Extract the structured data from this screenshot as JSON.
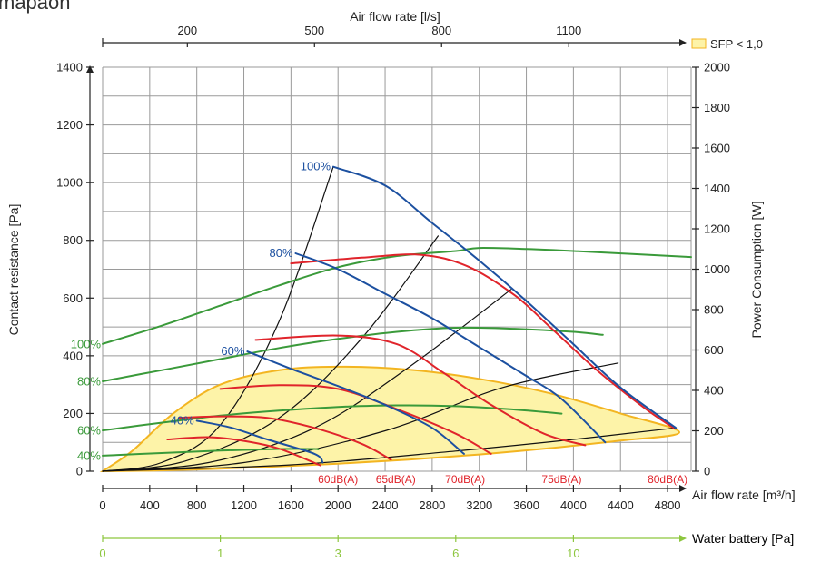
{
  "corner_fragment": "mapaon",
  "colors": {
    "grid": "#9a9a9a",
    "axis": "#222222",
    "efficiency": "#1c50a0",
    "sound": "#e0242b",
    "power": "#3a9a3a",
    "duct": "#111111",
    "water_axis": "#8dc63f",
    "sfp_fill": "#fdf3a8",
    "sfp_stroke": "#f3b521"
  },
  "chart_data": {
    "type": "line",
    "x_bottom": {
      "label": "Air flow rate [m³/h]",
      "range": [
        0,
        5000
      ],
      "ticks": [
        0,
        400,
        800,
        1200,
        1600,
        2000,
        2400,
        2800,
        3200,
        3600,
        4000,
        4400,
        4800
      ],
      "tick_labels": [
        "0",
        "400",
        "800",
        "1200",
        "1600",
        "2000",
        "2400",
        "2800",
        "3200",
        "3600",
        "4000",
        "4400",
        "4800"
      ]
    },
    "x_top": {
      "label": "Air flow rate [l/s]",
      "ticks": [
        200,
        500,
        800,
        1100
      ],
      "tick_labels": [
        "200",
        "500",
        "800",
        "1100"
      ]
    },
    "y_left": {
      "label": "Contact resistance [Pa]",
      "range": [
        0,
        1400
      ],
      "ticks": [
        0,
        200,
        400,
        600,
        800,
        1000,
        1200,
        1400
      ],
      "tick_labels": [
        "0",
        "200",
        "400",
        "600",
        "800",
        "1000",
        "1200",
        "1400"
      ]
    },
    "y_right": {
      "label": "Power Consumption [W]",
      "range": [
        0,
        2000
      ],
      "ticks": [
        0,
        200,
        400,
        600,
        800,
        1000,
        1200,
        1400,
        1600,
        1800,
        2000
      ],
      "tick_labels": [
        "0",
        "200",
        "400",
        "600",
        "800",
        "1000",
        "1200",
        "1400",
        "1600",
        "1800",
        "2000"
      ]
    },
    "water_axis": {
      "label": "Water battery [Pa]",
      "ticks_at_flow": [
        0,
        1000,
        2000,
        3000,
        4000
      ],
      "tick_labels": [
        "0",
        "1",
        "3",
        "6",
        "10"
      ]
    },
    "legend": {
      "label": "SFP < 1,0",
      "position": "top-right"
    },
    "sfp_region": [
      [
        0,
        0
      ],
      [
        250,
        70
      ],
      [
        600,
        200
      ],
      [
        1000,
        300
      ],
      [
        1500,
        350
      ],
      [
        2000,
        362
      ],
      [
        2600,
        352
      ],
      [
        3200,
        320
      ],
      [
        3800,
        270
      ],
      [
        4400,
        200
      ],
      [
        4900,
        135
      ],
      [
        4400,
        106
      ],
      [
        3800,
        80
      ],
      [
        3200,
        58
      ],
      [
        2600,
        40
      ],
      [
        2000,
        26
      ],
      [
        1400,
        15
      ],
      [
        800,
        6
      ],
      [
        400,
        2
      ],
      [
        0,
        0
      ]
    ],
    "efficiency_curves": [
      {
        "name": "100%",
        "points": [
          [
            1960,
            1055
          ],
          [
            2400,
            990
          ],
          [
            2800,
            860
          ],
          [
            3200,
            730
          ],
          [
            3600,
            590
          ],
          [
            4000,
            440
          ],
          [
            4400,
            290
          ],
          [
            4870,
            150
          ]
        ]
      },
      {
        "name": "80%",
        "points": [
          [
            1640,
            755
          ],
          [
            2000,
            700
          ],
          [
            2400,
            615
          ],
          [
            2800,
            530
          ],
          [
            3200,
            430
          ],
          [
            3600,
            330
          ],
          [
            3900,
            250
          ],
          [
            4270,
            100
          ]
        ]
      },
      {
        "name": "60%",
        "points": [
          [
            1230,
            415
          ],
          [
            1600,
            355
          ],
          [
            2000,
            295
          ],
          [
            2400,
            230
          ],
          [
            2800,
            150
          ],
          [
            3070,
            60
          ]
        ]
      },
      {
        "name": "40%",
        "points": [
          [
            800,
            175
          ],
          [
            1100,
            150
          ],
          [
            1400,
            110
          ],
          [
            1800,
            60
          ],
          [
            1870,
            30
          ]
        ]
      }
    ],
    "sound_curves": [
      {
        "name": "60dB(A)",
        "points": [
          [
            550,
            110
          ],
          [
            900,
            118
          ],
          [
            1200,
            105
          ],
          [
            1500,
            78
          ],
          [
            1850,
            20
          ]
        ]
      },
      {
        "name": "65dB(A)",
        "points": [
          [
            650,
            185
          ],
          [
            1000,
            190
          ],
          [
            1400,
            185
          ],
          [
            1800,
            150
          ],
          [
            2200,
            95
          ],
          [
            2450,
            40
          ]
        ]
      },
      {
        "name": "70dB(A)",
        "points": [
          [
            1000,
            285
          ],
          [
            1500,
            298
          ],
          [
            2000,
            285
          ],
          [
            2500,
            215
          ],
          [
            3000,
            130
          ],
          [
            3300,
            60
          ]
        ]
      },
      {
        "name": "75dB(A)",
        "points": [
          [
            1300,
            455
          ],
          [
            2000,
            470
          ],
          [
            2500,
            440
          ],
          [
            2900,
            340
          ],
          [
            3300,
            230
          ],
          [
            3750,
            130
          ],
          [
            4100,
            90
          ]
        ]
      },
      {
        "name": "80dB(A)",
        "points": [
          [
            1600,
            720
          ],
          [
            2200,
            740
          ],
          [
            2700,
            750
          ],
          [
            3100,
            710
          ],
          [
            3500,
            610
          ],
          [
            3800,
            500
          ],
          [
            4200,
            350
          ],
          [
            4600,
            220
          ],
          [
            4850,
            150
          ]
        ]
      }
    ],
    "sound_labels": [
      {
        "text": "60dB(A)",
        "at": 2000
      },
      {
        "text": "65dB(A)",
        "at": 2490
      },
      {
        "text": "70dB(A)",
        "at": 3080
      },
      {
        "text": "75dB(A)",
        "at": 3900
      },
      {
        "text": "80dB(A)",
        "at": 4800
      }
    ],
    "power_curves": [
      {
        "name": "100%",
        "points": [
          [
            0,
            630
          ],
          [
            500,
            720
          ],
          [
            1000,
            820
          ],
          [
            1500,
            920
          ],
          [
            2000,
            1010
          ],
          [
            2500,
            1065
          ],
          [
            3000,
            1090
          ],
          [
            3200,
            1105
          ],
          [
            3600,
            1100
          ],
          [
            4000,
            1090
          ],
          [
            4500,
            1075
          ],
          [
            5000,
            1060
          ]
        ]
      },
      {
        "name": "80%",
        "points": [
          [
            0,
            445
          ],
          [
            500,
            500
          ],
          [
            1000,
            555
          ],
          [
            1500,
            610
          ],
          [
            2000,
            655
          ],
          [
            2500,
            690
          ],
          [
            3000,
            710
          ],
          [
            3500,
            705
          ],
          [
            4000,
            690
          ],
          [
            4250,
            675
          ]
        ]
      },
      {
        "name": "60%",
        "points": [
          [
            0,
            202
          ],
          [
            500,
            240
          ],
          [
            1000,
            275
          ],
          [
            1500,
            300
          ],
          [
            2000,
            318
          ],
          [
            2500,
            326
          ],
          [
            3000,
            322
          ],
          [
            3500,
            305
          ],
          [
            3900,
            285
          ]
        ]
      },
      {
        "name": "40%",
        "points": [
          [
            0,
            77
          ],
          [
            500,
            90
          ],
          [
            1000,
            102
          ],
          [
            1500,
            110
          ],
          [
            1800,
            110
          ],
          [
            1830,
            108
          ]
        ]
      }
    ],
    "duct_curves": [
      {
        "points": [
          [
            0,
            0
          ],
          [
            500,
            30
          ],
          [
            1000,
            160
          ],
          [
            1500,
            520
          ],
          [
            1960,
            1055
          ]
        ]
      },
      {
        "points": [
          [
            0,
            0
          ],
          [
            700,
            35
          ],
          [
            1500,
            185
          ],
          [
            2200,
            460
          ],
          [
            2850,
            815
          ]
        ]
      },
      {
        "points": [
          [
            0,
            0
          ],
          [
            900,
            30
          ],
          [
            1800,
            150
          ],
          [
            2600,
            360
          ],
          [
            3470,
            630
          ]
        ]
      },
      {
        "points": [
          [
            0,
            0
          ],
          [
            1200,
            30
          ],
          [
            2400,
            140
          ],
          [
            3400,
            290
          ],
          [
            4380,
            375
          ]
        ]
      },
      {
        "points": [
          [
            0,
            0
          ],
          [
            1600,
            22
          ],
          [
            3000,
            70
          ],
          [
            4000,
            110
          ],
          [
            4870,
            150
          ]
        ]
      }
    ],
    "left_labels": [
      {
        "text": "100%",
        "y": 630
      },
      {
        "text": "80%",
        "y": 445
      },
      {
        "text": "60%",
        "y": 202
      },
      {
        "text": "40%",
        "y": 77
      }
    ],
    "curve_labels": [
      {
        "text": "100%",
        "x": 1960,
        "y": 1055
      },
      {
        "text": "80%",
        "x": 1640,
        "y": 755
      },
      {
        "text": "60%",
        "x": 1230,
        "y": 415
      },
      {
        "text": "40%",
        "x": 800,
        "y": 175
      }
    ]
  }
}
